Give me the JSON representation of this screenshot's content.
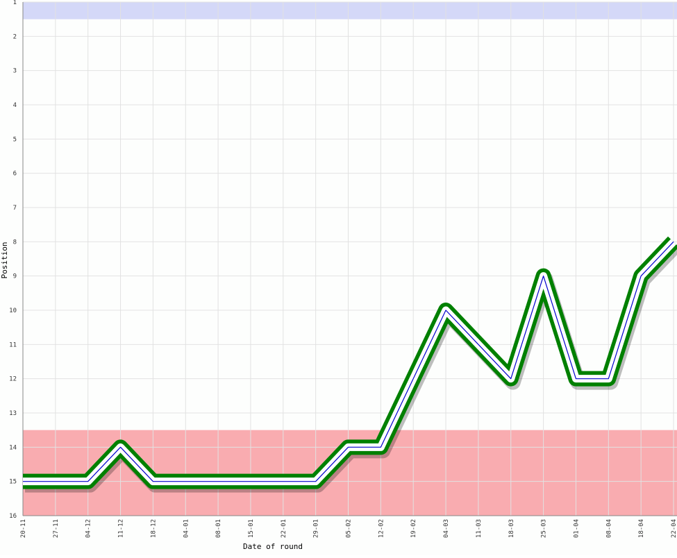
{
  "chart_data": {
    "type": "line",
    "x_label": "Date of round",
    "y_label": "Position",
    "categories": [
      "20-11",
      "27-11",
      "04-12",
      "11-12",
      "18-12",
      "04-01",
      "08-01",
      "15-01",
      "22-01",
      "29-01",
      "05-02",
      "12-02",
      "19-02",
      "04-03",
      "11-03",
      "18-03",
      "25-03",
      "01-04",
      "08-04",
      "18-04",
      "22-04"
    ],
    "values": [
      15,
      15,
      15,
      14,
      15,
      15,
      15,
      15,
      15,
      15,
      14,
      14,
      12,
      10,
      11,
      12,
      9,
      12,
      12,
      9,
      8
    ],
    "ylim": [
      1,
      16
    ],
    "yticks": [
      1,
      2,
      3,
      4,
      5,
      6,
      7,
      8,
      9,
      10,
      11,
      12,
      13,
      14,
      15,
      16
    ],
    "y_inverted": true,
    "grid": true,
    "line_color": "#008000",
    "center_color": "#0000cc",
    "bands": [
      {
        "from": 1,
        "to": 1.5,
        "color": "#d4d8f8"
      },
      {
        "from": 13.5,
        "to": 16,
        "color": "#f9acb0"
      }
    ]
  }
}
